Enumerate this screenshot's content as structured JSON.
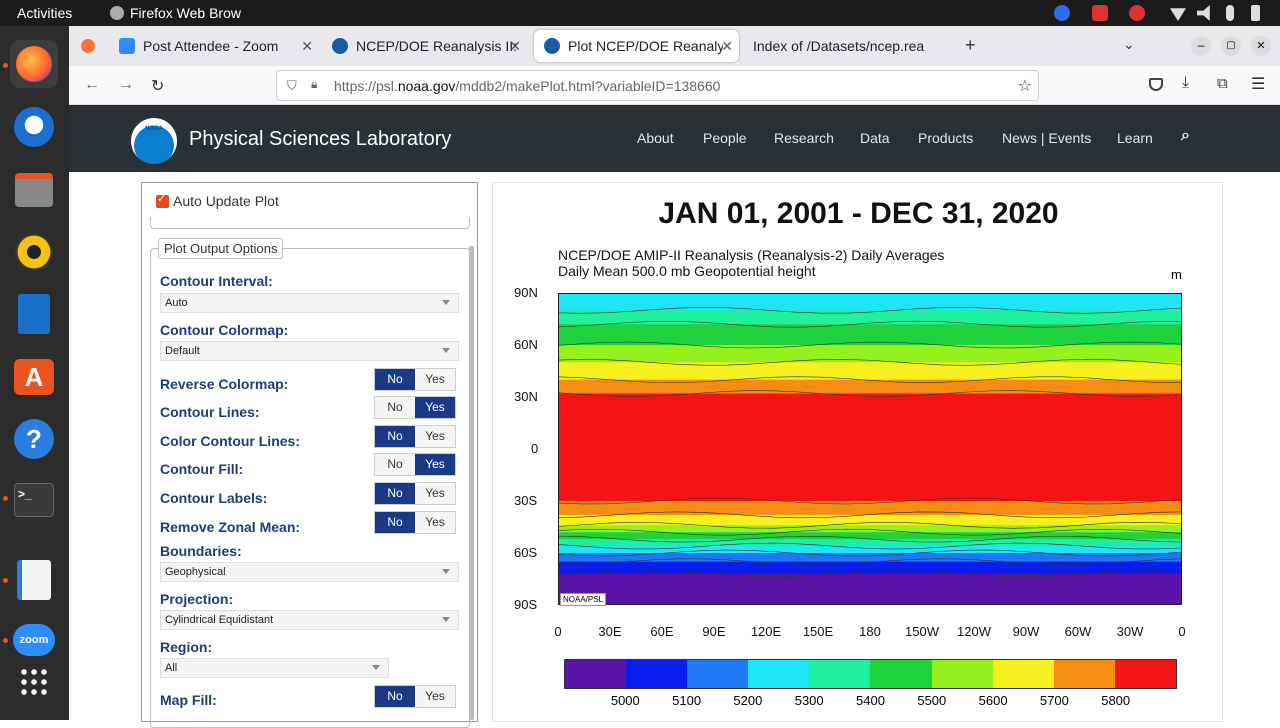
{
  "system": {
    "activities": "Activities",
    "app_name": "Firefox Web Brow"
  },
  "browser": {
    "tabs": [
      {
        "label": "Post Attendee - Zoom",
        "icon_color": "#2d8cff"
      },
      {
        "label": "NCEP/DOE Reanalysis II: |",
        "icon_color": "#1a5ba6"
      },
      {
        "label": "Plot NCEP/DOE Reanalys",
        "icon_color": "#1a5ba6"
      },
      {
        "label": "Index of /Datasets/ncep.rea",
        "icon_color": ""
      }
    ],
    "url_prefix": "https://psl.",
    "url_domain": "noaa.gov",
    "url_path": "/mddb2/makePlot.html?variableID=138660"
  },
  "site": {
    "name": "Physical Sciences Laboratory",
    "logo_text": "NOAA",
    "nav": [
      "About",
      "People",
      "Research",
      "Data",
      "Products",
      "News | Events",
      "Learn"
    ]
  },
  "panel": {
    "auto_update": "Auto Update Plot",
    "section_title": "Plot Output Options",
    "contour_interval_label": "Contour Interval:",
    "contour_interval_value": "Auto",
    "colormap_label": "Contour Colormap:",
    "colormap_value": "Default",
    "toggles": [
      {
        "label": "Reverse Colormap:",
        "no": "No",
        "yes": "Yes",
        "selected": "No"
      },
      {
        "label": "Contour Lines:",
        "no": "No",
        "yes": "Yes",
        "selected": "Yes"
      },
      {
        "label": "Color Contour Lines:",
        "no": "No",
        "yes": "Yes",
        "selected": "No"
      },
      {
        "label": "Contour Fill:",
        "no": "No",
        "yes": "Yes",
        "selected": "Yes"
      },
      {
        "label": "Contour Labels:",
        "no": "No",
        "yes": "Yes",
        "selected": "No"
      },
      {
        "label": "Remove Zonal Mean:",
        "no": "No",
        "yes": "Yes",
        "selected": "No"
      }
    ],
    "boundaries_label": "Boundaries:",
    "boundaries_value": "Geophysical",
    "projection_label": "Projection:",
    "projection_value": "Cylindrical Equidistant",
    "region_label": "Region:",
    "region_value": "All",
    "mapfill_label": "Map Fill:",
    "mapfill_no": "No",
    "mapfill_yes": "Yes"
  },
  "plot": {
    "date_range": "JAN 01, 2001 - DEC 31, 2020",
    "subtitle1": "NCEP/DOE AMIP-II Reanalysis (Reanalysis-2) Daily Averages",
    "subtitle2": "Daily Mean 500.0 mb Geopotential height",
    "unit": "m",
    "credit": "NOAA/PSL"
  },
  "chart_data": {
    "type": "heatmap",
    "ylabels": [
      "90N",
      "60N",
      "30N",
      "0",
      "30S",
      "60S",
      "90S"
    ],
    "xlabels": [
      "0",
      "30E",
      "60E",
      "90E",
      "120E",
      "150E",
      "180",
      "150W",
      "120W",
      "90W",
      "60W",
      "30W",
      "0"
    ],
    "colorbar_levels": [
      5000,
      5100,
      5200,
      5300,
      5400,
      5500,
      5600,
      5700,
      5800
    ],
    "colorbar_colors": [
      "#5a14a8",
      "#0a1ef0",
      "#1e78f5",
      "#1ee6f5",
      "#1ef0a0",
      "#1ed23c",
      "#96f01e",
      "#f5f01e",
      "#f58c14",
      "#f51414"
    ],
    "lat_bands": [
      {
        "lat": 90,
        "color": "#1ee6f5"
      },
      {
        "lat": 80,
        "color": "#1ef0a0"
      },
      {
        "lat": 72,
        "color": "#1ed23c"
      },
      {
        "lat": 60,
        "color": "#96f01e"
      },
      {
        "lat": 50,
        "color": "#f5f01e"
      },
      {
        "lat": 40,
        "color": "#f58c14"
      },
      {
        "lat": 32,
        "color": "#f51414"
      },
      {
        "lat": -30,
        "color": "#f58c14"
      },
      {
        "lat": -38,
        "color": "#f5f01e"
      },
      {
        "lat": -44,
        "color": "#96f01e"
      },
      {
        "lat": -48,
        "color": "#1ed23c"
      },
      {
        "lat": -52,
        "color": "#1ef0a0"
      },
      {
        "lat": -56,
        "color": "#1ee6f5"
      },
      {
        "lat": -60,
        "color": "#1e78f5"
      },
      {
        "lat": -65,
        "color": "#0a1ef0"
      },
      {
        "lat": -72,
        "color": "#5a14a8"
      }
    ]
  }
}
